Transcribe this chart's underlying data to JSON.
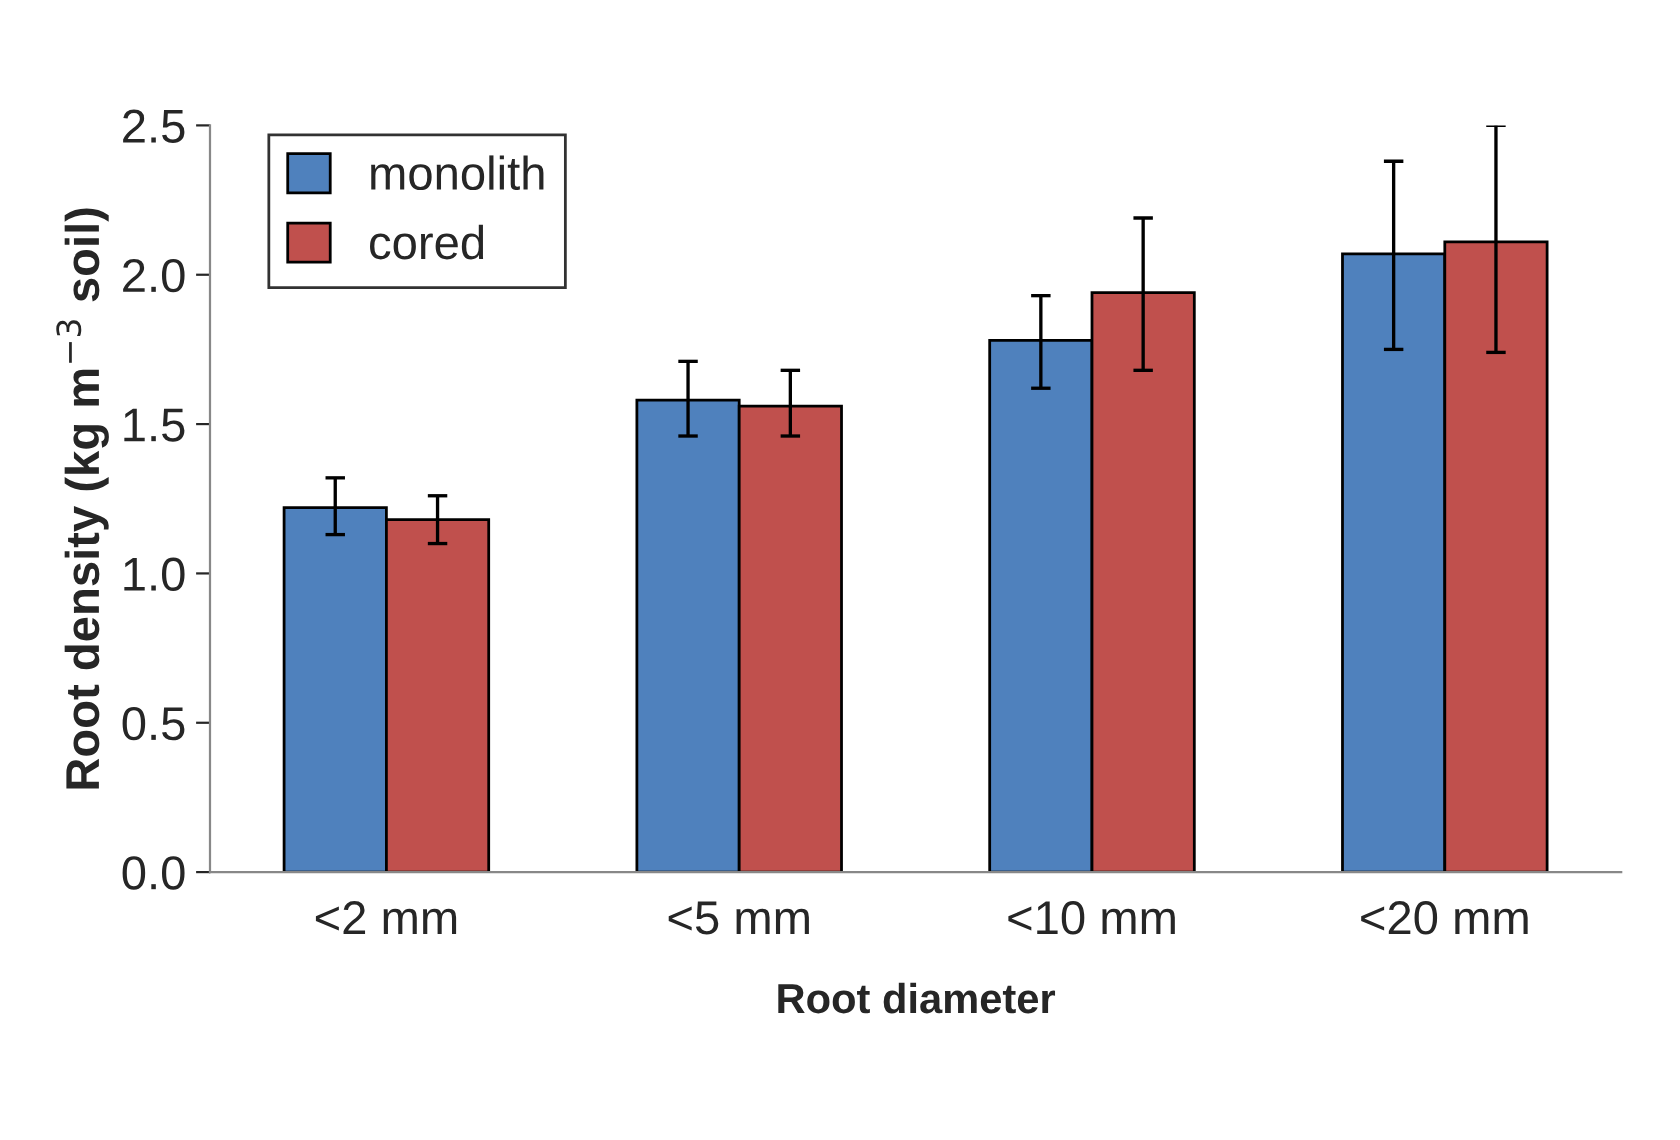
{
  "chart_data": {
    "type": "bar",
    "xlabel": "Root diameter",
    "ylabel": "Root density (kg m$^{−3}$ soil)",
    "categories": [
      "<2 mm",
      "<5 mm",
      "<10 mm",
      "<20 mm"
    ],
    "series": [
      {
        "name": "monolith",
        "color": "#4f81bd",
        "values": [
          1.22,
          1.58,
          1.78,
          2.07
        ],
        "errors": [
          [
            1.13,
            1.32
          ],
          [
            1.46,
            1.71
          ],
          [
            1.62,
            1.93
          ],
          [
            1.75,
            2.38
          ]
        ]
      },
      {
        "name": "cored",
        "color": "#c0504d",
        "values": [
          1.18,
          1.56,
          1.94,
          2.11
        ],
        "errors": [
          [
            1.1,
            1.26
          ],
          [
            1.46,
            1.68
          ],
          [
            1.68,
            2.19
          ],
          [
            1.74,
            2.5
          ]
        ]
      }
    ],
    "ylim": [
      0,
      2.5
    ],
    "yticks": [
      {
        "value": 0,
        "label": "0.0"
      },
      {
        "value": 0.5,
        "label": "0.5"
      },
      {
        "value": 1,
        "label": "1.0"
      },
      {
        "value": 1.5,
        "label": "1.5"
      },
      {
        "value": 2,
        "label": "2.0"
      },
      {
        "value": 2.5,
        "label": "2.5"
      }
    ],
    "grid": false,
    "legend": "top left"
  }
}
